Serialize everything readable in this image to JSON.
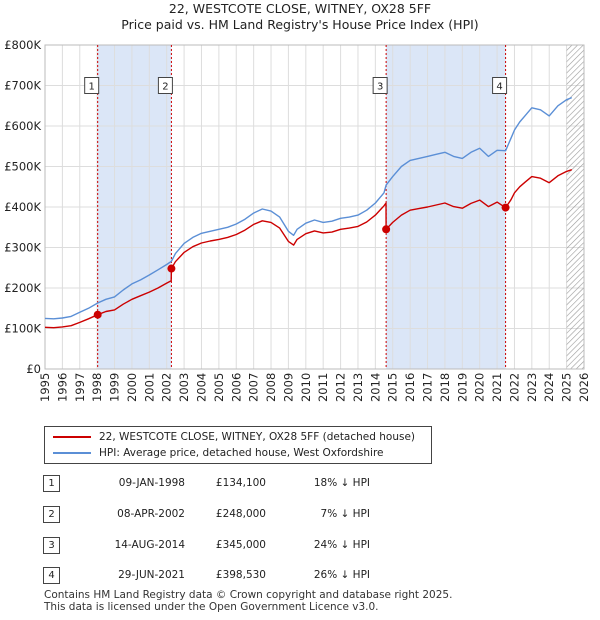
{
  "title": "22, WESTCOTE CLOSE, WITNEY, OX28 5FF",
  "subtitle": "Price paid vs. HM Land Registry's House Price Index (HPI)",
  "legend": [
    {
      "label": "22, WESTCOTE CLOSE, WITNEY, OX28 5FF (detached house)",
      "color": "#cc0000"
    },
    {
      "label": "HPI: Average price, detached house, West Oxfordshire",
      "color": "#5b8fd6"
    }
  ],
  "sales": [
    {
      "num": "1",
      "date": "09-JAN-1998",
      "price": "£134,100",
      "delta": "18% ↓ HPI"
    },
    {
      "num": "2",
      "date": "08-APR-2002",
      "price": "£248,000",
      "delta": "7% ↓ HPI"
    },
    {
      "num": "3",
      "date": "14-AUG-2014",
      "price": "£345,000",
      "delta": "24% ↓ HPI"
    },
    {
      "num": "4",
      "date": "29-JUN-2021",
      "price": "£398,530",
      "delta": "26% ↓ HPI"
    }
  ],
  "footer": [
    "Contains HM Land Registry data © Crown copyright and database right 2025.",
    "This data is licensed under the Open Government Licence v3.0."
  ],
  "chart_data": {
    "type": "line",
    "title": "22, WESTCOTE CLOSE, WITNEY, OX28 5FF",
    "subtitle": "Price paid vs. HM Land Registry's House Price Index (HPI)",
    "xlabel": "",
    "ylabel": "",
    "xlim": [
      1995,
      2026
    ],
    "ylim": [
      0,
      800000
    ],
    "x_ticks": [
      1995,
      1996,
      1997,
      1998,
      1999,
      2000,
      2001,
      2002,
      2003,
      2004,
      2005,
      2006,
      2007,
      2008,
      2009,
      2010,
      2011,
      2012,
      2013,
      2014,
      2015,
      2016,
      2017,
      2018,
      2019,
      2020,
      2021,
      2022,
      2023,
      2024,
      2025,
      2026
    ],
    "y_ticks": [
      0,
      100000,
      200000,
      300000,
      400000,
      500000,
      600000,
      700000,
      800000
    ],
    "y_tick_labels": [
      "£0",
      "£100K",
      "£200K",
      "£300K",
      "£400K",
      "£500K",
      "£600K",
      "£700K",
      "£800K"
    ],
    "grid": true,
    "colors": {
      "property": "#cc0000",
      "hpi": "#5b8fd6",
      "shade": "#dbe6f7",
      "grid": "#dddddd",
      "hatch": "#999999"
    },
    "shaded_spans": [
      [
        1998.03,
        2002.27
      ],
      [
        2014.62,
        2021.49
      ]
    ],
    "hatched_from": 2025.0,
    "sales": [
      {
        "label": "1",
        "x": 1998.03,
        "y": 134100
      },
      {
        "label": "2",
        "x": 2002.27,
        "y": 248000
      },
      {
        "label": "3",
        "x": 2014.62,
        "y": 345000
      },
      {
        "label": "4",
        "x": 2021.49,
        "y": 398530
      }
    ],
    "marker_label_y": 700000,
    "series": [
      {
        "name": "HPI: Average price, detached house, West Oxfordshire",
        "key": "hpi",
        "x": [
          1995.0,
          1995.5,
          1996.0,
          1996.5,
          1997.0,
          1997.5,
          1998.03,
          1998.5,
          1999.0,
          1999.5,
          2000.0,
          2000.5,
          2001.0,
          2001.5,
          2002.0,
          2002.27,
          2002.5,
          2003.0,
          2003.5,
          2004.0,
          2004.5,
          2005.0,
          2005.5,
          2006.0,
          2006.5,
          2007.0,
          2007.5,
          2008.0,
          2008.5,
          2009.0,
          2009.3,
          2009.5,
          2010.0,
          2010.5,
          2011.0,
          2011.5,
          2012.0,
          2012.5,
          2013.0,
          2013.5,
          2014.0,
          2014.5,
          2014.62,
          2015.0,
          2015.5,
          2016.0,
          2016.5,
          2017.0,
          2017.5,
          2018.0,
          2018.5,
          2019.0,
          2019.5,
          2020.0,
          2020.5,
          2021.0,
          2021.49,
          2021.8,
          2022.0,
          2022.3,
          2022.6,
          2023.0,
          2023.5,
          2024.0,
          2024.5,
          2025.0,
          2025.3
        ],
        "values": [
          125000,
          124000,
          126000,
          130000,
          140000,
          150000,
          163000,
          172000,
          178000,
          195000,
          210000,
          220000,
          232000,
          245000,
          258000,
          266000,
          285000,
          310000,
          325000,
          335000,
          340000,
          345000,
          350000,
          358000,
          370000,
          385000,
          395000,
          390000,
          375000,
          340000,
          330000,
          345000,
          360000,
          368000,
          362000,
          365000,
          372000,
          375000,
          380000,
          392000,
          410000,
          435000,
          454000,
          475000,
          500000,
          515000,
          520000,
          525000,
          530000,
          535000,
          525000,
          520000,
          535000,
          545000,
          525000,
          540000,
          539000,
          570000,
          590000,
          610000,
          625000,
          645000,
          640000,
          625000,
          650000,
          665000,
          670000
        ]
      },
      {
        "name": "22, WESTCOTE CLOSE, WITNEY, OX28 5FF (detached house)",
        "key": "property",
        "x": [
          1995.0,
          1995.5,
          1996.0,
          1996.5,
          1997.0,
          1997.5,
          1998.03,
          1998.5,
          1999.0,
          1999.5,
          2000.0,
          2000.5,
          2001.0,
          2001.5,
          2002.0,
          2002.26,
          2002.27,
          2002.5,
          2003.0,
          2003.5,
          2004.0,
          2004.5,
          2005.0,
          2005.5,
          2006.0,
          2006.5,
          2007.0,
          2007.5,
          2008.0,
          2008.5,
          2009.0,
          2009.3,
          2009.5,
          2010.0,
          2010.5,
          2011.0,
          2011.5,
          2012.0,
          2012.5,
          2013.0,
          2013.5,
          2014.0,
          2014.5,
          2014.61,
          2014.62,
          2015.0,
          2015.5,
          2016.0,
          2016.5,
          2017.0,
          2017.5,
          2018.0,
          2018.5,
          2019.0,
          2019.5,
          2020.0,
          2020.5,
          2021.0,
          2021.48,
          2021.49,
          2021.8,
          2022.0,
          2022.3,
          2022.6,
          2023.0,
          2023.5,
          2024.0,
          2024.5,
          2025.0,
          2025.3
        ],
        "values": [
          103000,
          102000,
          104000,
          107000,
          115000,
          124000,
          134100,
          142000,
          146000,
          160000,
          172000,
          181000,
          190000,
          200000,
          212000,
          218000,
          248000,
          265000,
          288000,
          302000,
          311000,
          316000,
          320000,
          325000,
          332000,
          343000,
          357000,
          366000,
          362000,
          348000,
          315000,
          306000,
          320000,
          334000,
          341000,
          336000,
          338000,
          345000,
          348000,
          352000,
          363000,
          380000,
          403000,
          410000,
          345000,
          362000,
          380000,
          392000,
          396000,
          400000,
          405000,
          410000,
          401000,
          397000,
          409000,
          417000,
          401000,
          412000,
          398530,
          398530,
          418000,
          435000,
          450000,
          461000,
          475000,
          471000,
          460000,
          477000,
          488000,
          492000
        ]
      }
    ]
  }
}
